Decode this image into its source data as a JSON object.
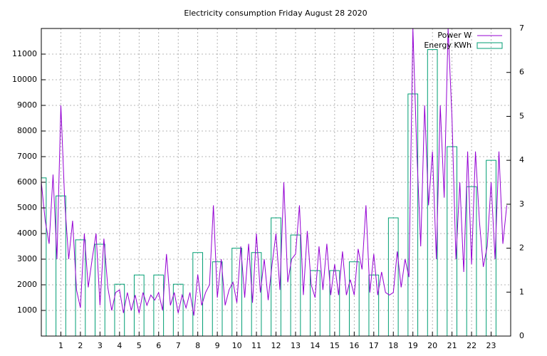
{
  "chart_data": {
    "type": "line",
    "title": "Electricity consumption Friday August 28 2020",
    "xlim": [
      0,
      24
    ],
    "xticks": [
      1,
      2,
      3,
      4,
      5,
      6,
      7,
      8,
      9,
      10,
      11,
      12,
      13,
      14,
      15,
      16,
      17,
      18,
      19,
      20,
      21,
      22,
      23
    ],
    "ylim": [
      0,
      12000
    ],
    "yticks": [
      1000,
      2000,
      3000,
      4000,
      5000,
      6000,
      7000,
      8000,
      9000,
      10000,
      11000
    ],
    "y2lim": [
      0,
      7
    ],
    "y2ticks": [
      0,
      1,
      2,
      3,
      4,
      5,
      6,
      7
    ],
    "grid": true,
    "legend": "top-right",
    "series": [
      {
        "name": "Power W",
        "type": "line",
        "color": "#9400d3",
        "x": [
          0,
          0.2,
          0.4,
          0.6,
          0.8,
          1,
          1.2,
          1.4,
          1.6,
          1.8,
          2,
          2.2,
          2.4,
          2.6,
          2.8,
          3,
          3.2,
          3.4,
          3.6,
          3.8,
          4,
          4.2,
          4.4,
          4.6,
          4.8,
          5,
          5.2,
          5.4,
          5.6,
          5.8,
          6,
          6.2,
          6.4,
          6.6,
          6.8,
          7,
          7.2,
          7.4,
          7.6,
          7.8,
          8,
          8.2,
          8.4,
          8.6,
          8.8,
          9,
          9.2,
          9.4,
          9.6,
          9.8,
          10,
          10.2,
          10.4,
          10.6,
          10.8,
          11,
          11.2,
          11.4,
          11.6,
          11.8,
          12,
          12.2,
          12.4,
          12.6,
          12.8,
          13,
          13.2,
          13.4,
          13.6,
          13.8,
          14,
          14.2,
          14.4,
          14.6,
          14.8,
          15,
          15.2,
          15.4,
          15.6,
          15.8,
          16,
          16.2,
          16.4,
          16.6,
          16.8,
          17,
          17.2,
          17.4,
          17.6,
          17.8,
          18,
          18.2,
          18.4,
          18.6,
          18.8,
          19,
          19.2,
          19.4,
          19.6,
          19.8,
          20,
          20.2,
          20.4,
          20.6,
          20.8,
          21,
          21.2,
          21.4,
          21.6,
          21.8,
          22,
          22.2,
          22.4,
          22.6,
          22.8,
          23,
          23.2,
          23.4,
          23.6,
          23.8
        ],
        "values": [
          6000,
          4500,
          3600,
          6300,
          3000,
          9000,
          5200,
          3000,
          4500,
          1800,
          1100,
          4000,
          1900,
          3000,
          4000,
          1200,
          3800,
          1900,
          1000,
          1700,
          1800,
          900,
          1700,
          1000,
          1600,
          900,
          1700,
          1200,
          1600,
          1400,
          1700,
          1000,
          3200,
          1200,
          1700,
          900,
          1600,
          1100,
          1700,
          800,
          2400,
          1200,
          1700,
          2000,
          5100,
          1500,
          3000,
          1200,
          1800,
          2100,
          1300,
          3500,
          1500,
          3600,
          1300,
          4000,
          1700,
          3000,
          1400,
          2800,
          4000,
          1800,
          6000,
          2100,
          3000,
          3200,
          5100,
          1600,
          4100,
          2000,
          1500,
          3500,
          1800,
          3600,
          1600,
          2800,
          1600,
          3300,
          1600,
          2200,
          1600,
          3400,
          2600,
          5100,
          1700,
          3200,
          1600,
          2500,
          1700,
          1600,
          1700,
          3300,
          1900,
          3000,
          2300,
          12000,
          7200,
          3500,
          9000,
          5100,
          7200,
          3000,
          9000,
          5400,
          12000,
          8500,
          3000,
          6000,
          2500,
          7200,
          2800,
          7200,
          4500,
          2700,
          3500,
          6000,
          3000,
          7200,
          3600,
          5100
        ]
      },
      {
        "name": "Energy KWh",
        "type": "box",
        "axis": "y2",
        "color": "#009e73",
        "x": [
          0,
          1,
          2,
          3,
          4,
          5,
          6,
          7,
          8,
          9,
          10,
          11,
          12,
          13,
          14,
          15,
          16,
          17,
          18,
          19,
          20,
          21,
          22,
          23
        ],
        "values": [
          3.6,
          3.19,
          2.19,
          2.09,
          1.18,
          1.39,
          1.39,
          1.18,
          1.9,
          1.69,
          2.0,
          1.9,
          2.69,
          2.3,
          1.49,
          1.49,
          1.69,
          1.39,
          2.69,
          5.51,
          6.52,
          4.31,
          3.4,
          4.0
        ]
      }
    ]
  }
}
